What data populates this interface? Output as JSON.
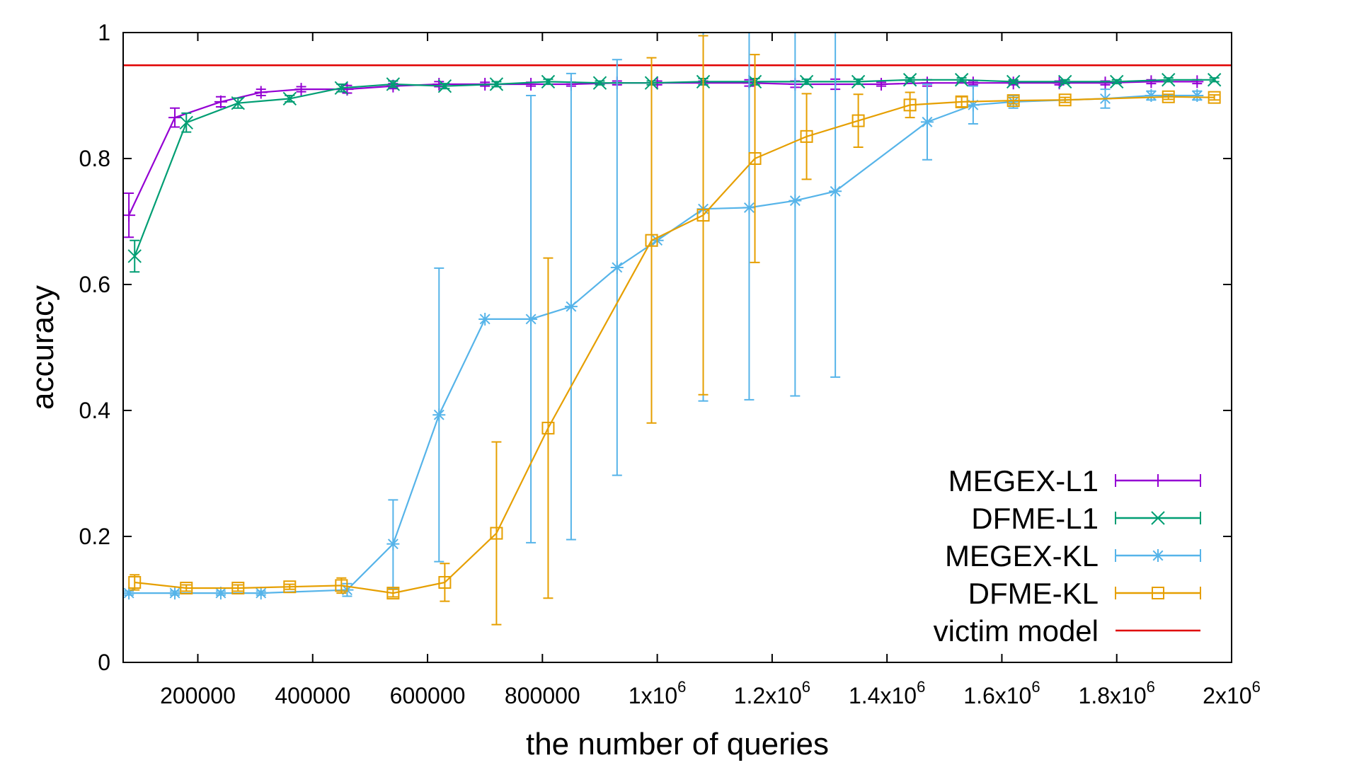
{
  "chart_data": {
    "type": "line",
    "title": "",
    "xlabel": "the number of queries",
    "ylabel": "accuracy",
    "xlim": [
      70000,
      2000000
    ],
    "ylim": [
      0,
      1
    ],
    "grid": false,
    "legend_position": "bottom-right",
    "x_ticks": [
      {
        "value": 200000,
        "base": "200000",
        "exp": ""
      },
      {
        "value": 400000,
        "base": "400000",
        "exp": ""
      },
      {
        "value": 600000,
        "base": "600000",
        "exp": ""
      },
      {
        "value": 800000,
        "base": "800000",
        "exp": ""
      },
      {
        "value": 1000000,
        "base": "1x10",
        "exp": "6"
      },
      {
        "value": 1200000,
        "base": "1.2x10",
        "exp": "6"
      },
      {
        "value": 1400000,
        "base": "1.4x10",
        "exp": "6"
      },
      {
        "value": 1600000,
        "base": "1.6x10",
        "exp": "6"
      },
      {
        "value": 1800000,
        "base": "1.8x10",
        "exp": "6"
      },
      {
        "value": 2000000,
        "base": "2x10",
        "exp": "6"
      }
    ],
    "y_ticks": [
      {
        "value": 0,
        "label": "0"
      },
      {
        "value": 0.2,
        "label": "0.2"
      },
      {
        "value": 0.4,
        "label": "0.4"
      },
      {
        "value": 0.6,
        "label": "0.6"
      },
      {
        "value": 0.8,
        "label": "0.8"
      },
      {
        "value": 1,
        "label": "1"
      }
    ],
    "series": [
      {
        "name": "MEGEX-L1",
        "color": "#9400d3",
        "marker": "plus",
        "x": [
          80000,
          160000,
          240000,
          310000,
          380000,
          460000,
          540000,
          620000,
          700000,
          780000,
          850000,
          930000,
          1000000,
          1080000,
          1160000,
          1240000,
          1310000,
          1390000,
          1470000,
          1550000,
          1620000,
          1700000,
          1780000,
          1860000,
          1940000
        ],
        "y": [
          0.71,
          0.865,
          0.89,
          0.905,
          0.91,
          0.91,
          0.915,
          0.918,
          0.918,
          0.918,
          0.918,
          0.92,
          0.92,
          0.92,
          0.92,
          0.918,
          0.918,
          0.918,
          0.92,
          0.92,
          0.92,
          0.92,
          0.92,
          0.922,
          0.922
        ],
        "error": [
          0.035,
          0.015,
          0.008,
          0.005,
          0.004,
          0.006,
          0.004,
          0.004,
          0.003,
          0.003,
          0.003,
          0.003,
          0.003,
          0.003,
          0.005,
          0.005,
          0.008,
          0.003,
          0.005,
          0.003,
          0.003,
          0.003,
          0.003,
          0.003,
          0.003
        ]
      },
      {
        "name": "DFME-L1",
        "color": "#009e73",
        "marker": "cross",
        "x": [
          90000,
          180000,
          270000,
          360000,
          450000,
          540000,
          630000,
          720000,
          810000,
          900000,
          990000,
          1080000,
          1170000,
          1260000,
          1350000,
          1440000,
          1530000,
          1620000,
          1710000,
          1800000,
          1890000,
          1970000
        ],
        "y": [
          0.645,
          0.857,
          0.888,
          0.895,
          0.912,
          0.918,
          0.915,
          0.918,
          0.922,
          0.92,
          0.92,
          0.922,
          0.922,
          0.922,
          0.922,
          0.925,
          0.925,
          0.922,
          0.922,
          0.922,
          0.925,
          0.925
        ],
        "error": [
          0.025,
          0.015,
          0.008,
          0.005,
          0.006,
          0.005,
          0.004,
          0.004,
          0.004,
          0.003,
          0.003,
          0.005,
          0.005,
          0.004,
          0.004,
          0.003,
          0.003,
          0.003,
          0.003,
          0.003,
          0.003,
          0.003
        ]
      },
      {
        "name": "MEGEX-KL",
        "color": "#56b4e9",
        "marker": "star",
        "x": [
          80000,
          160000,
          240000,
          310000,
          460000,
          540000,
          620000,
          700000,
          780000,
          850000,
          930000,
          1000000,
          1080000,
          1160000,
          1240000,
          1310000,
          1470000,
          1550000,
          1620000,
          1780000,
          1860000,
          1940000
        ],
        "y": [
          0.11,
          0.11,
          0.11,
          0.11,
          0.115,
          0.188,
          0.393,
          0.545,
          0.545,
          0.565,
          0.627,
          0.67,
          0.72,
          0.722,
          0.733,
          0.748,
          0.858,
          0.885,
          0.89,
          0.895,
          0.9,
          0.9
        ],
        "error": [
          0.003,
          0.003,
          0.003,
          0.003,
          0.01,
          0.07,
          0.233,
          0.0,
          0.355,
          0.37,
          0.33,
          0.0,
          0.305,
          0.305,
          0.31,
          0.295,
          0.06,
          0.03,
          0.01,
          0.015,
          0.007,
          0.007
        ]
      },
      {
        "name": "DFME-KL",
        "color": "#e69f00",
        "marker": "square",
        "x": [
          90000,
          180000,
          270000,
          360000,
          450000,
          540000,
          630000,
          720000,
          810000,
          990000,
          1080000,
          1170000,
          1260000,
          1350000,
          1440000,
          1530000,
          1620000,
          1710000,
          1890000,
          1970000
        ],
        "y": [
          0.127,
          0.118,
          0.118,
          0.12,
          0.122,
          0.11,
          0.127,
          0.205,
          0.372,
          0.67,
          0.71,
          0.8,
          0.835,
          0.86,
          0.885,
          0.89,
          0.892,
          0.893,
          0.898,
          0.897
        ],
        "error": [
          0.012,
          0.005,
          0.005,
          0.004,
          0.012,
          0.006,
          0.03,
          0.145,
          0.27,
          0.29,
          0.285,
          0.165,
          0.068,
          0.042,
          0.02,
          0.008,
          0.005,
          0.004,
          0.004,
          0.004
        ]
      }
    ],
    "reference_lines": [
      {
        "name": "victim model",
        "color": "#e00000",
        "y": 0.948
      }
    ]
  }
}
